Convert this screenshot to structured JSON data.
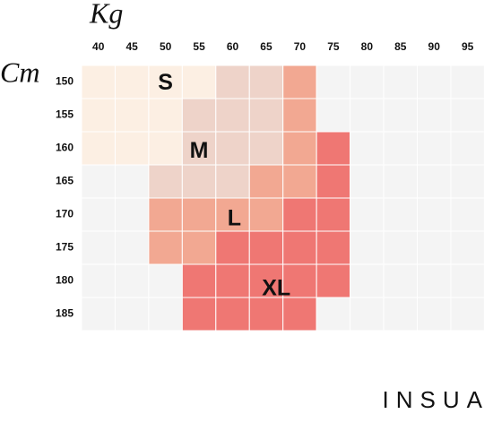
{
  "x_unit": "Kg",
  "y_unit": "Cm",
  "columns": [
    "40",
    "45",
    "50",
    "55",
    "60",
    "65",
    "70",
    "75",
    "80",
    "85",
    "90",
    "95"
  ],
  "rows": [
    "150",
    "155",
    "160",
    "165",
    "170",
    "175",
    "180",
    "185"
  ],
  "sizes": [
    {
      "label": "S",
      "color": "#fcefe3"
    },
    {
      "label": "M",
      "color": "#eed3c9"
    },
    {
      "label": "L",
      "color": "#f2a892"
    },
    {
      "label": "XL",
      "color": "#ef7773"
    }
  ],
  "empty_color": "#f4f4f4",
  "grid": [
    [
      0,
      0,
      0,
      0,
      1,
      1,
      2,
      null,
      null,
      null,
      null,
      null
    ],
    [
      0,
      0,
      0,
      1,
      1,
      1,
      2,
      null,
      null,
      null,
      null,
      null
    ],
    [
      0,
      0,
      0,
      1,
      1,
      1,
      2,
      3,
      null,
      null,
      null,
      null
    ],
    [
      null,
      null,
      1,
      1,
      1,
      2,
      2,
      3,
      null,
      null,
      null,
      null
    ],
    [
      null,
      null,
      2,
      2,
      2,
      2,
      3,
      3,
      null,
      null,
      null,
      null
    ],
    [
      null,
      null,
      2,
      2,
      3,
      3,
      3,
      3,
      null,
      null,
      null,
      null
    ],
    [
      null,
      null,
      null,
      3,
      3,
      3,
      3,
      3,
      null,
      null,
      null,
      null
    ],
    [
      null,
      null,
      null,
      3,
      3,
      3,
      3,
      null,
      null,
      null,
      null,
      null
    ]
  ],
  "logo": "INSUA"
}
